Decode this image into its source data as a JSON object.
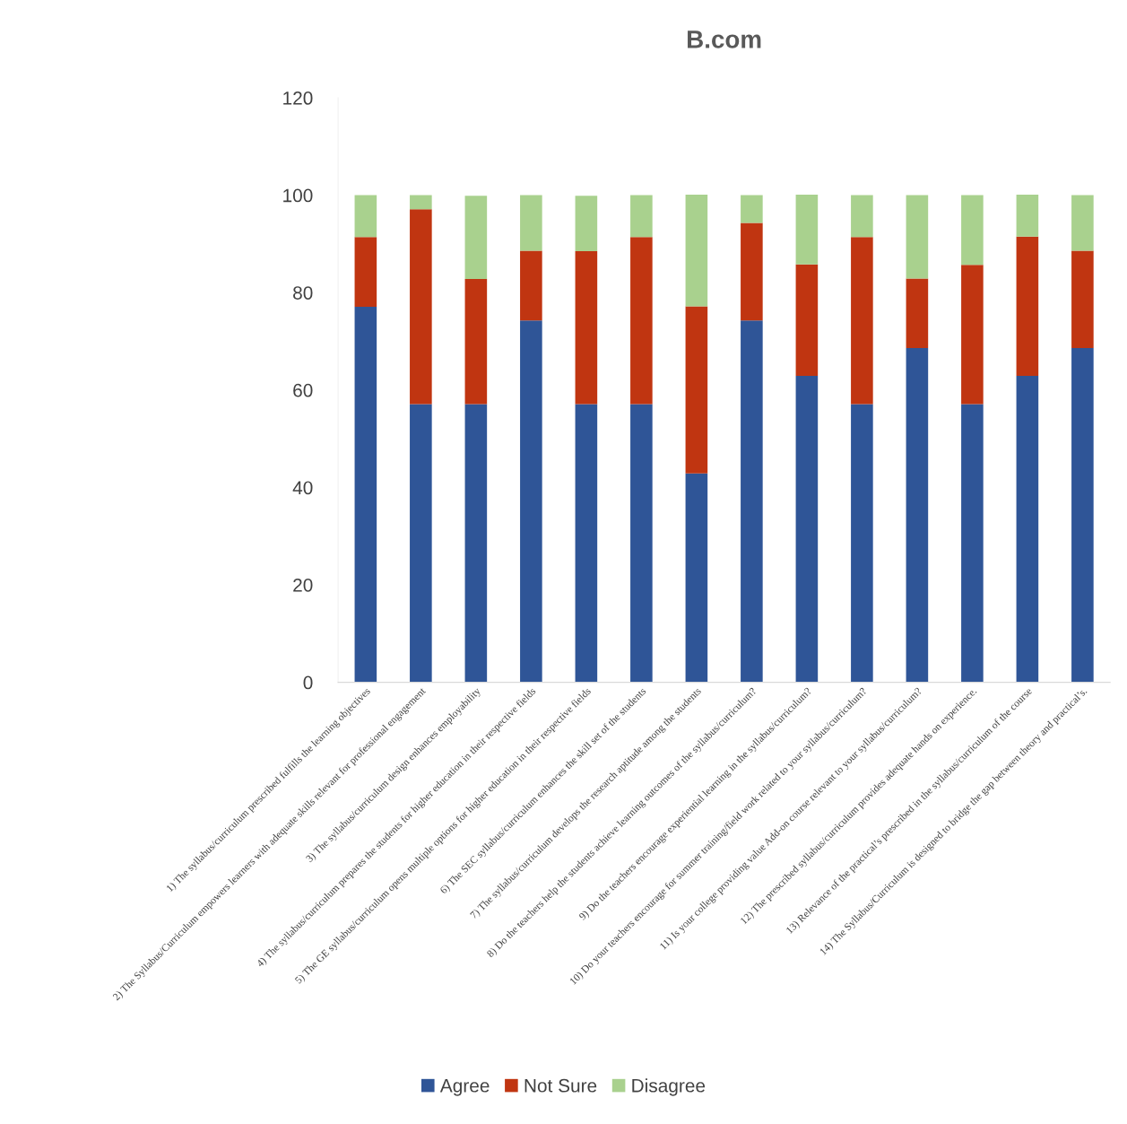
{
  "chart_data": {
    "type": "bar",
    "title": "B.com",
    "stacked": true,
    "categories": [
      "1) The syllabus/curriculum prescribed fulfills the learning objectives",
      "2) The Syllabus/Curriculum empowers learners with adequate skills relevant for professional engagement",
      "3) The syllabus/curriculum design enhances employability",
      "4) The syllabus/curriculum prepares the students for higher education in their respective fields",
      "5) The GE syllabus/curriculum opens multiple options for higher education in their respective fields",
      "6) The SEC syllabus/curriculum enhances the skill set of the students",
      "7) The syllabus/curriculum develops the research aptitude among the students",
      "8) Do the teachers help the students achieve learning outcomes of the syllabus/curriculum?",
      "9) Do the teachers encourage experiential learning in the syllabus/curriculum?",
      "10) Do your teachers encourage for summer training/field work related to your syllabus/curriculum?",
      "11) Is your college providing value Add-on course relevant to your syllabus/curriculum?",
      "12) The prescribed syllabus/curriculum provides adequate hands on experience.",
      "13) Relevance of the practical’s prescribed in the syllabus/curriculum of the course",
      "14) The Syllabus/Curriculum is designed to bridge the gap between theory and practical’s."
    ],
    "series": [
      {
        "name": "Agree",
        "color": "#2f5597",
        "values": [
          77.1,
          57.1,
          57.1,
          74.3,
          57.1,
          57.1,
          42.9,
          74.3,
          62.9,
          57.1,
          68.6,
          57.1,
          62.9,
          68.6
        ]
      },
      {
        "name": "Not Sure",
        "color": "#c03511",
        "values": [
          14.3,
          40,
          25.7,
          14.3,
          31.4,
          34.3,
          34.3,
          20,
          22.9,
          34.3,
          14.3,
          28.6,
          28.6,
          20
        ]
      },
      {
        "name": "Disagree",
        "color": "#a9d18e",
        "values": [
          8.6,
          2.9,
          17.1,
          11.4,
          11.4,
          8.6,
          22.9,
          5.7,
          14.3,
          8.6,
          17.1,
          14.3,
          8.6,
          11.4
        ]
      }
    ],
    "ylim": [
      0,
      120
    ],
    "yticks": [
      0,
      20,
      40,
      60,
      80,
      100,
      120
    ],
    "grid": false,
    "legend": "bottom"
  }
}
